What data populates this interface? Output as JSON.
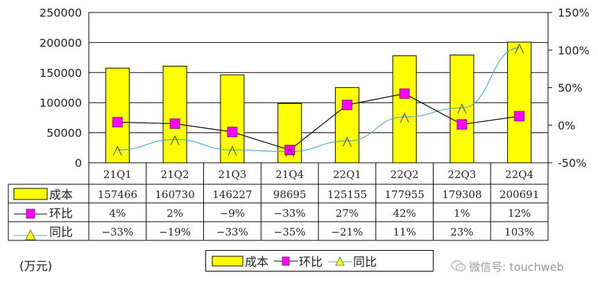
{
  "chart_data": {
    "type": "bar",
    "title": "",
    "xlabel": "",
    "ylabel": "(万元)",
    "categories": [
      "21Q1",
      "21Q2",
      "21Q3",
      "21Q4",
      "22Q1",
      "22Q2",
      "22Q3",
      "22Q4"
    ],
    "series": [
      {
        "name": "成本",
        "type": "bar",
        "axis": "left",
        "color": "#ffff00",
        "values": [
          157466,
          160730,
          146227,
          98695,
          125155,
          177955,
          179308,
          200691
        ]
      },
      {
        "name": "环比",
        "type": "line",
        "axis": "right",
        "color": "#000000",
        "marker": "square",
        "marker_color": "#ff00ff",
        "values": [
          4,
          2,
          -9,
          -33,
          27,
          42,
          1,
          12
        ]
      },
      {
        "name": "同比",
        "type": "line",
        "axis": "right",
        "color": "#4bacc6",
        "marker": "triangle",
        "marker_color": "#ffff00",
        "values": [
          -33,
          -19,
          -33,
          -35,
          -21,
          11,
          23,
          103
        ]
      }
    ],
    "ylim": [
      0,
      250000
    ],
    "y_ticks": [
      "250000",
      "200000",
      "150000",
      "100000",
      "50000",
      "0"
    ],
    "y2lim": [
      -50,
      150
    ],
    "y2_ticks": [
      "150%",
      "100%",
      "50%",
      "0%",
      "-50%"
    ],
    "grid": true,
    "legend_position": "bottom",
    "data_table": {
      "rows": [
        {
          "label": "成本",
          "cells": [
            "157466",
            "160730",
            "146227",
            "98695",
            "125155",
            "177955",
            "179308",
            "200691"
          ]
        },
        {
          "label": "环比",
          "cells": [
            "4%",
            "2%",
            "-9%",
            "-33%",
            "27%",
            "42%",
            "1%",
            "12%"
          ]
        },
        {
          "label": "同比",
          "cells": [
            "-33%",
            "-19%",
            "-33%",
            "-35%",
            "-21%",
            "11%",
            "23%",
            "103%"
          ]
        }
      ]
    }
  },
  "unit_label": "(万元)",
  "legend": {
    "items": [
      {
        "label": "成本",
        "icon": "yellow-bar-swatch"
      },
      {
        "label": "环比",
        "icon": "magenta-square-line"
      },
      {
        "label": "同比",
        "icon": "yellow-triangle-line"
      }
    ]
  },
  "watermark": {
    "icon": "wechat-icon",
    "text": "微信号: touchweb"
  }
}
